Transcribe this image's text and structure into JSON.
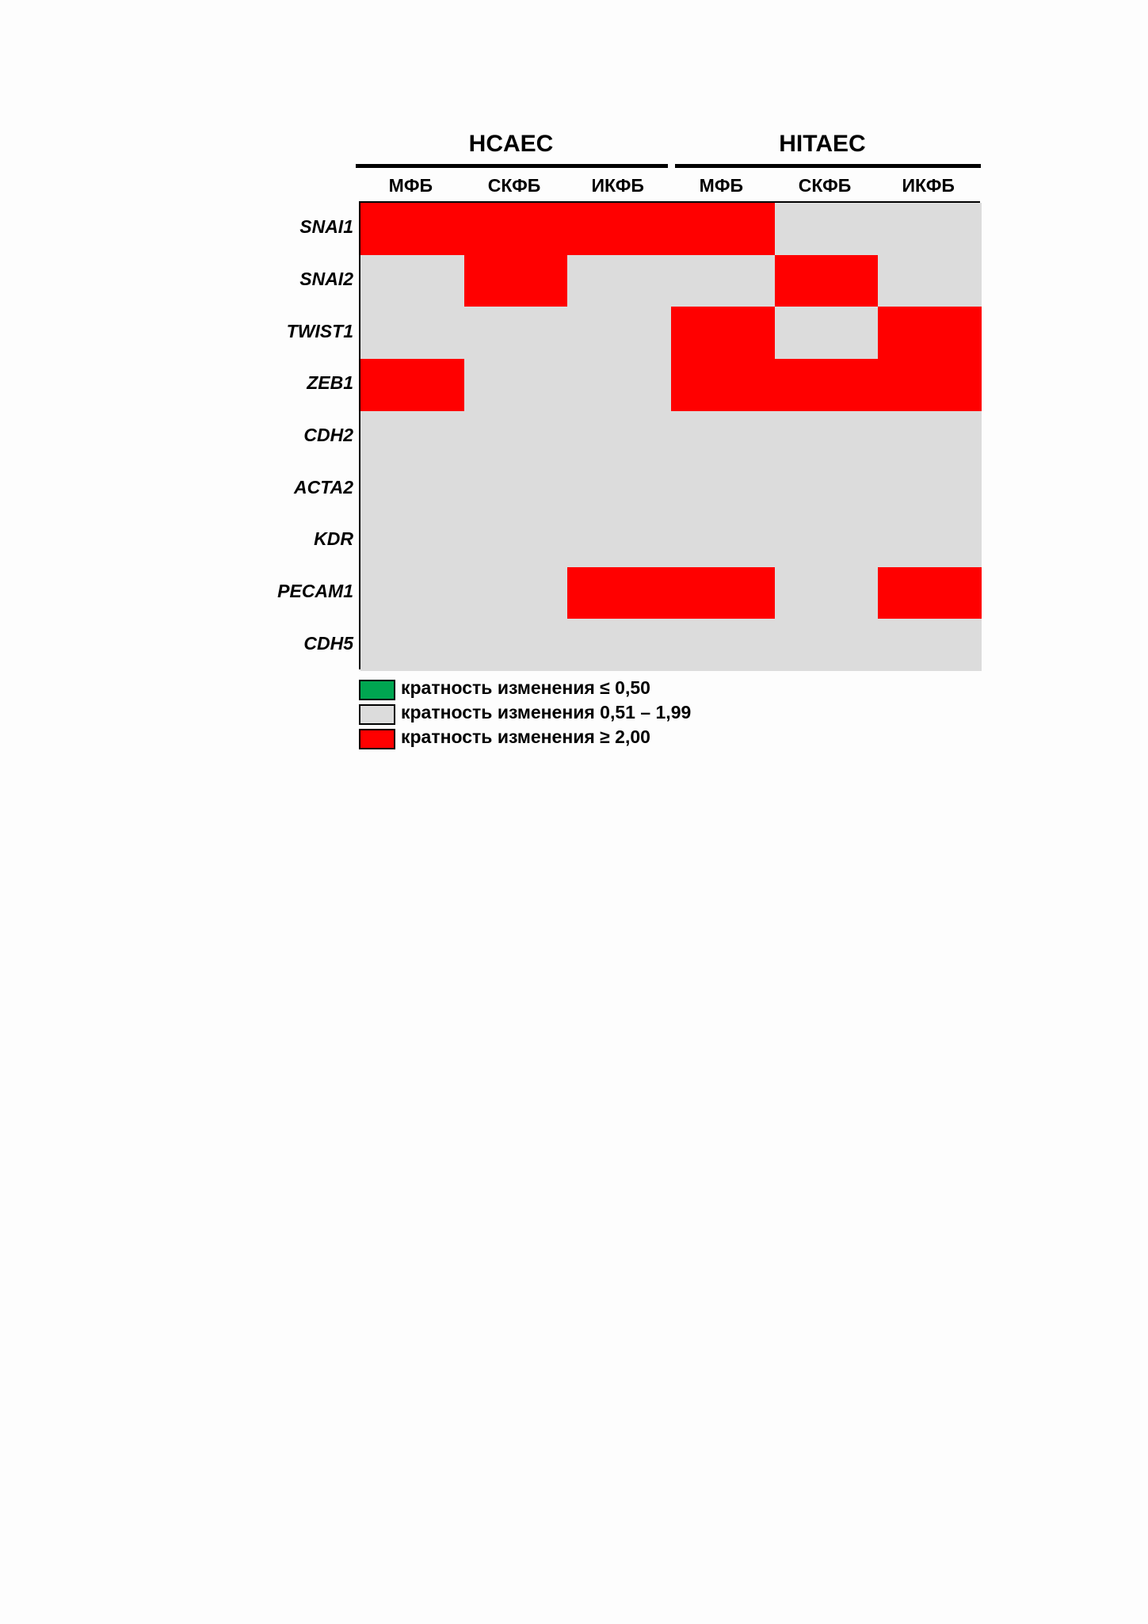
{
  "chart_data": {
    "type": "heatmap",
    "groups": [
      {
        "name": "HCAEC",
        "columns": [
          "МФБ",
          "СКФБ",
          "ИКФБ"
        ]
      },
      {
        "name": "HITAEC",
        "columns": [
          "МФБ",
          "СКФБ",
          "ИКФБ"
        ]
      }
    ],
    "columns": [
      "МФБ",
      "СКФБ",
      "ИКФБ",
      "МФБ",
      "СКФБ",
      "ИКФБ"
    ],
    "rows": [
      "SNAI1",
      "SNAI2",
      "TWIST1",
      "ZEB1",
      "CDH2",
      "ACTA2",
      "KDR",
      "PECAM1",
      "CDH5"
    ],
    "categories": [
      "кратность изменения ≤ 0,50",
      "кратность изменения 0,51 – 1,99",
      "кратность изменения ≥ 2,00"
    ],
    "category_colors": [
      "#00a651",
      "#dcdcdc",
      "#ff0000"
    ],
    "values": [
      [
        2,
        2,
        2,
        2,
        1,
        1
      ],
      [
        1,
        2,
        1,
        1,
        2,
        1
      ],
      [
        1,
        1,
        1,
        2,
        1,
        2
      ],
      [
        2,
        1,
        1,
        2,
        2,
        2
      ],
      [
        1,
        1,
        1,
        1,
        1,
        1
      ],
      [
        1,
        1,
        1,
        1,
        1,
        1
      ],
      [
        1,
        1,
        1,
        1,
        1,
        1
      ],
      [
        1,
        1,
        2,
        2,
        1,
        2
      ],
      [
        1,
        1,
        1,
        1,
        1,
        1
      ]
    ]
  }
}
